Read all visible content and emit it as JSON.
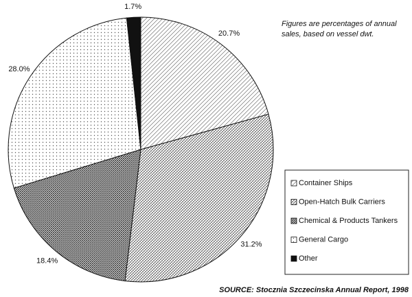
{
  "chart_data": {
    "type": "pie",
    "annotation": [
      "Figures are percentages of annual",
      "sales, based on vessel dwt."
    ],
    "source": "SOURCE: Stocznia Szczecinska Annual Report, 1998",
    "categories": [
      "Container Ships",
      "Open-Hatch Bulk Carriers",
      "Chemical & Products Tankers",
      "General Cargo",
      "Other"
    ],
    "values": [
      20.7,
      31.2,
      18.4,
      28.0,
      1.7
    ],
    "value_labels": [
      "20.7%",
      "31.2%",
      "18.4%",
      "28.0%",
      "1.7%"
    ],
    "patterns": [
      "diagonal",
      "crosshatch",
      "dense-crosshatch",
      "dots",
      "solid"
    ],
    "legend": "bottom-right"
  }
}
